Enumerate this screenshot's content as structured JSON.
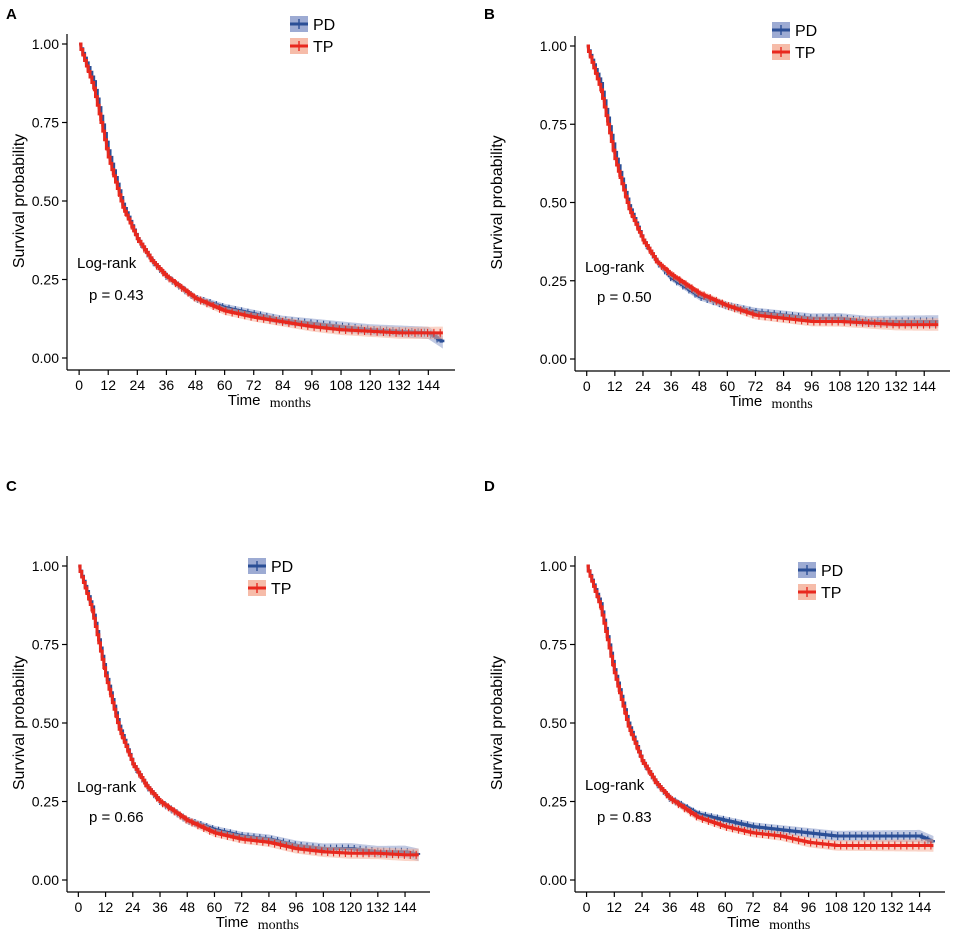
{
  "colors": {
    "PD": "#2b4f96",
    "TP": "#e8281e",
    "PD_band": "#8c9ccb",
    "TP_band": "#f4b09a",
    "axis": "#000000"
  },
  "chart_data": [
    {
      "panel": "A",
      "type": "line",
      "ylabel": "Survival probability",
      "xlabel": "Time",
      "xunit": "months",
      "xlim": [
        -5,
        155
      ],
      "ylim": [
        0,
        1
      ],
      "x_ticks": [
        "0",
        "12",
        "24",
        "36",
        "48",
        "60",
        "72",
        "84",
        "96",
        "108",
        "120",
        "132",
        "144"
      ],
      "y_ticks": [
        "0.00",
        "0.25",
        "0.50",
        "0.75",
        "1.00"
      ],
      "legend": [
        "PD",
        "TP"
      ],
      "annotation": {
        "test": "Log-rank",
        "p": "p = 0.43"
      },
      "series": [
        {
          "name": "PD",
          "x": [
            0,
            6,
            12,
            18,
            24,
            30,
            36,
            48,
            60,
            72,
            84,
            96,
            108,
            120,
            132,
            144,
            150
          ],
          "y": [
            1.0,
            0.88,
            0.66,
            0.49,
            0.38,
            0.31,
            0.26,
            0.19,
            0.16,
            0.14,
            0.12,
            0.11,
            0.1,
            0.09,
            0.085,
            0.08,
            0.05
          ]
        },
        {
          "name": "TP",
          "x": [
            0,
            6,
            12,
            18,
            24,
            30,
            36,
            48,
            60,
            72,
            84,
            96,
            108,
            120,
            132,
            144,
            150
          ],
          "y": [
            1.0,
            0.86,
            0.64,
            0.48,
            0.38,
            0.31,
            0.26,
            0.19,
            0.15,
            0.13,
            0.115,
            0.1,
            0.09,
            0.085,
            0.08,
            0.08,
            0.08
          ]
        }
      ]
    },
    {
      "panel": "B",
      "type": "line",
      "ylabel": "Survival probability",
      "xlabel": "Time",
      "xunit": "months",
      "xlim": [
        -5,
        155
      ],
      "ylim": [
        0,
        1
      ],
      "x_ticks": [
        "0",
        "12",
        "24",
        "36",
        "48",
        "60",
        "72",
        "84",
        "96",
        "108",
        "120",
        "132",
        "144"
      ],
      "y_ticks": [
        "0.00",
        "0.25",
        "0.50",
        "0.75",
        "1.00"
      ],
      "legend": [
        "PD",
        "TP"
      ],
      "annotation": {
        "test": "Log-rank",
        "p": "p = 0.50"
      },
      "series": [
        {
          "name": "PD",
          "x": [
            0,
            6,
            12,
            18,
            24,
            30,
            36,
            48,
            60,
            72,
            84,
            96,
            108,
            120,
            132,
            144,
            150
          ],
          "y": [
            1.0,
            0.88,
            0.66,
            0.49,
            0.38,
            0.31,
            0.26,
            0.2,
            0.17,
            0.15,
            0.14,
            0.13,
            0.13,
            0.12,
            0.12,
            0.12,
            0.12
          ]
        },
        {
          "name": "TP",
          "x": [
            0,
            6,
            12,
            18,
            24,
            30,
            36,
            48,
            60,
            72,
            84,
            96,
            108,
            120,
            132,
            144,
            150
          ],
          "y": [
            1.0,
            0.86,
            0.64,
            0.48,
            0.38,
            0.31,
            0.27,
            0.21,
            0.17,
            0.14,
            0.13,
            0.12,
            0.12,
            0.115,
            0.11,
            0.11,
            0.11
          ]
        }
      ]
    },
    {
      "panel": "C",
      "type": "line",
      "ylabel": "Survival probability",
      "xlabel": "Time",
      "xunit": "months",
      "xlim": [
        -5,
        155
      ],
      "ylim": [
        0,
        1
      ],
      "x_ticks": [
        "0",
        "12",
        "24",
        "36",
        "48",
        "60",
        "72",
        "84",
        "96",
        "108",
        "120",
        "132",
        "144"
      ],
      "y_ticks": [
        "0.00",
        "0.25",
        "0.50",
        "0.75",
        "1.00"
      ],
      "legend": [
        "PD",
        "TP"
      ],
      "annotation": {
        "test": "Log-rank",
        "p": "p = 0.66"
      },
      "series": [
        {
          "name": "PD",
          "x": [
            0,
            6,
            12,
            18,
            24,
            30,
            36,
            48,
            60,
            72,
            84,
            96,
            108,
            120,
            132,
            144,
            150
          ],
          "y": [
            1.0,
            0.87,
            0.66,
            0.49,
            0.37,
            0.3,
            0.25,
            0.19,
            0.16,
            0.14,
            0.13,
            0.11,
            0.1,
            0.1,
            0.09,
            0.09,
            0.08
          ]
        },
        {
          "name": "TP",
          "x": [
            0,
            6,
            12,
            18,
            24,
            30,
            36,
            48,
            60,
            72,
            84,
            96,
            108,
            120,
            132,
            144,
            150
          ],
          "y": [
            1.0,
            0.86,
            0.65,
            0.48,
            0.37,
            0.3,
            0.25,
            0.19,
            0.15,
            0.13,
            0.12,
            0.1,
            0.09,
            0.085,
            0.085,
            0.08,
            0.08
          ]
        }
      ]
    },
    {
      "panel": "D",
      "type": "line",
      "ylabel": "Survival probability",
      "xlabel": "Time",
      "xunit": "months",
      "xlim": [
        -5,
        155
      ],
      "ylim": [
        0,
        1
      ],
      "x_ticks": [
        "0",
        "12",
        "24",
        "36",
        "48",
        "60",
        "72",
        "84",
        "96",
        "108",
        "120",
        "132",
        "144"
      ],
      "y_ticks": [
        "0.00",
        "0.25",
        "0.50",
        "0.75",
        "1.00"
      ],
      "legend": [
        "PD",
        "TP"
      ],
      "annotation": {
        "test": "Log-rank",
        "p": "p = 0.83"
      },
      "series": [
        {
          "name": "PD",
          "x": [
            0,
            6,
            12,
            18,
            24,
            30,
            36,
            48,
            60,
            72,
            84,
            96,
            108,
            120,
            132,
            144,
            150
          ],
          "y": [
            1.0,
            0.88,
            0.67,
            0.5,
            0.38,
            0.31,
            0.26,
            0.21,
            0.19,
            0.17,
            0.16,
            0.15,
            0.14,
            0.14,
            0.14,
            0.14,
            0.12
          ]
        },
        {
          "name": "TP",
          "x": [
            0,
            6,
            12,
            18,
            24,
            30,
            36,
            48,
            60,
            72,
            84,
            96,
            108,
            120,
            132,
            144,
            150
          ],
          "y": [
            1.0,
            0.87,
            0.66,
            0.49,
            0.38,
            0.31,
            0.26,
            0.2,
            0.17,
            0.15,
            0.14,
            0.12,
            0.11,
            0.11,
            0.11,
            0.11,
            0.11
          ]
        }
      ]
    }
  ]
}
